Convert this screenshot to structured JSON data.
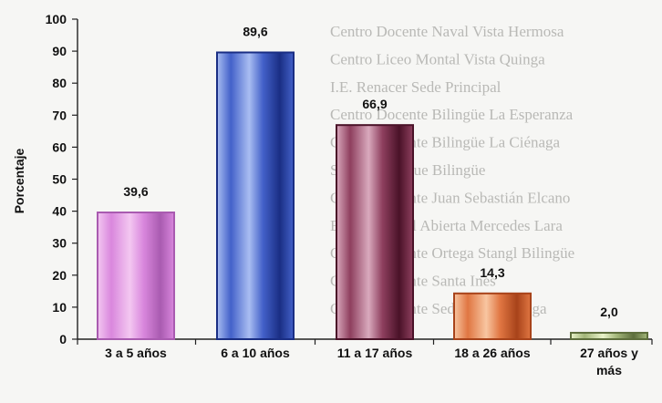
{
  "chart_data": {
    "type": "bar",
    "title": "",
    "xlabel": "",
    "ylabel": "Porcentaje",
    "ylim": [
      0,
      100
    ],
    "yticks": [
      0,
      10,
      20,
      30,
      40,
      50,
      60,
      70,
      80,
      90,
      100
    ],
    "grid": false,
    "legend": "none",
    "decimal_separator": ",",
    "categories": [
      [
        "3 a 5 años"
      ],
      [
        "6 a 10 años"
      ],
      [
        "11 a 17 años"
      ],
      [
        "18 a 26 años"
      ],
      [
        "27 años y",
        "más"
      ]
    ],
    "values": [
      39.6,
      89.6,
      66.9,
      14.3,
      2.0
    ],
    "value_labels": [
      "39,6",
      "89,6",
      "66,9",
      "14,3",
      "2,0"
    ],
    "bar_colors": [
      {
        "light": "#f3c7f1",
        "mid": "#d987dd",
        "dark": "#a95bb0"
      },
      {
        "light": "#a9bdf2",
        "mid": "#4361c9",
        "dark": "#1a2e84"
      },
      {
        "light": "#d9a9bd",
        "mid": "#8e3f5e",
        "dark": "#4a1228"
      },
      {
        "light": "#f8c6a1",
        "mid": "#e07642",
        "dark": "#a8431a"
      },
      {
        "light": "#e9f3c9",
        "mid": "#a2b679",
        "dark": "#5d6e3c"
      }
    ]
  },
  "background_lines": [
    "Centro Docente Naval Vista Hermosa",
    "Centro Liceo Montal Vista Quinga",
    "I.E. Renacer Sede Principal",
    "Centro Docente Bilingüe La Esperanza",
    "Centro Docente Bilingüe La Ciénaga",
    "Sede El Bosque Bilingüe",
    "Centro Docente Juan Sebastián Elcano",
    "Escuela Rural Abierta Mercedes Lara",
    "Centro Docente Ortega Stangl Bilingüe",
    "Centro Docente Santa Inés",
    "Centro Docente Sede Vista Quinga"
  ]
}
